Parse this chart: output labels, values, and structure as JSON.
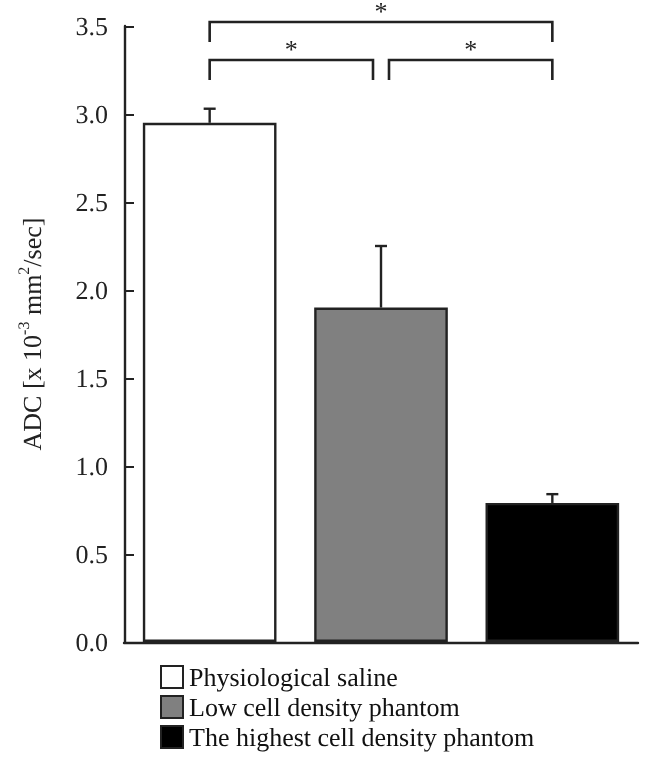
{
  "chart_data": {
    "type": "bar",
    "ylabel": "ADC [x 10$^{-3}$ mm$^{2}$/sec]",
    "categories": [
      null,
      null,
      null
    ],
    "series": [
      {
        "name": "Physiological saline",
        "color": "#ffffff",
        "values": [
          2.95,
          null,
          null
        ],
        "errors": [
          0.08,
          null,
          null
        ]
      },
      {
        "name": "Low cell density phantom",
        "color": "#808080",
        "values": [
          null,
          1.9,
          null
        ],
        "errors": [
          null,
          0.35,
          null
        ]
      },
      {
        "name": "The highest cell density phantom",
        "color": "#000000",
        "values": [
          null,
          null,
          0.79
        ],
        "errors": [
          null,
          null,
          0.05
        ]
      }
    ],
    "ylim": [
      0,
      3.5
    ],
    "yticks": [
      {
        "value": 0,
        "label": "0.0"
      },
      {
        "value": 0.5,
        "label": "0.5"
      },
      {
        "value": 1,
        "label": "1.0"
      },
      {
        "value": 1.5,
        "label": "1.5"
      },
      {
        "value": 2,
        "label": "2.0"
      },
      {
        "value": 2.5,
        "label": "2.5"
      },
      {
        "value": 3,
        "label": "3.0"
      },
      {
        "value": 3.5,
        "label": "3.5"
      }
    ],
    "legend": "bottom",
    "grid": false,
    "annotations": [
      "*",
      "*",
      "*"
    ]
  }
}
